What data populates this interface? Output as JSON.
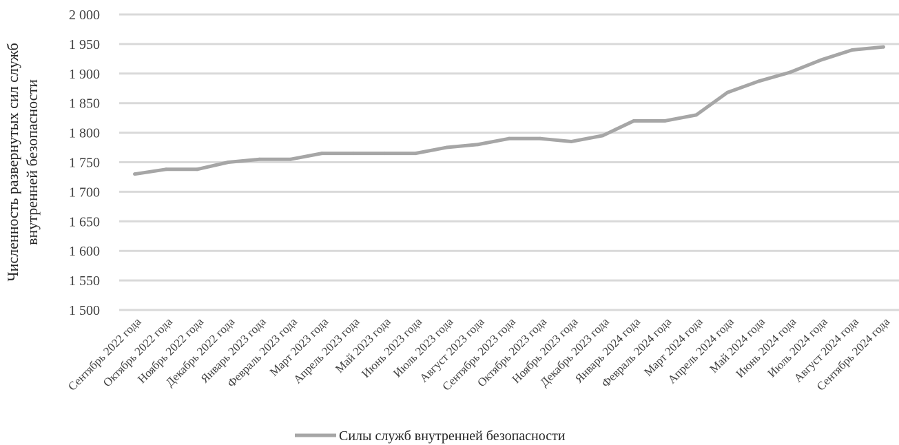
{
  "chart_data": {
    "type": "line",
    "title": "",
    "xlabel": "",
    "ylabel_lines": [
      "Численность развернутых сил служб",
      "внутренней безопасности"
    ],
    "ylim": [
      1500,
      2000
    ],
    "y_step": 50,
    "y_tick_labels": [
      "1 500",
      "1 550",
      "1 600",
      "1 650",
      "1 700",
      "1 750",
      "1 800",
      "1 850",
      "1 900",
      "1 950",
      "2 000"
    ],
    "grid": true,
    "legend_position": "bottom",
    "categories": [
      "Сентябрь 2022 года",
      "Октябрь 2022 года",
      "Ноябрь 2022 года",
      "Декабрь 2022 года",
      "Январь 2023 года",
      "Февраль 2023 года",
      "Март 2023 года",
      "Апрель 2023 года",
      "Май 2023 года",
      "Июнь 2023 года",
      "Июль 2023 года",
      "Август 2023 года",
      "Сентябрь 2023 года",
      "Октябрь 2023 года",
      "Ноябрь 2023 года",
      "Декабрь 2023 года",
      "Январь 2024 года",
      "Февраль 2024 года",
      "Март 2024 года",
      "Апрель 2024 года",
      "Май 2024 года",
      "Июнь 2024 года",
      "Июль 2024 года",
      "Август 2024 года",
      "Сентябрь 2024 года"
    ],
    "series": [
      {
        "name": "Силы служб внутренней безопасности",
        "color": "#a6a6a6",
        "values": [
          1730,
          1738,
          1738,
          1750,
          1755,
          1755,
          1765,
          1765,
          1765,
          1765,
          1775,
          1780,
          1790,
          1790,
          1785,
          1795,
          1820,
          1820,
          1830,
          1868,
          1887,
          1902,
          1923,
          1940,
          1945
        ]
      }
    ],
    "colors": {
      "grid": "#d9d9d9",
      "text": "#404040"
    }
  }
}
